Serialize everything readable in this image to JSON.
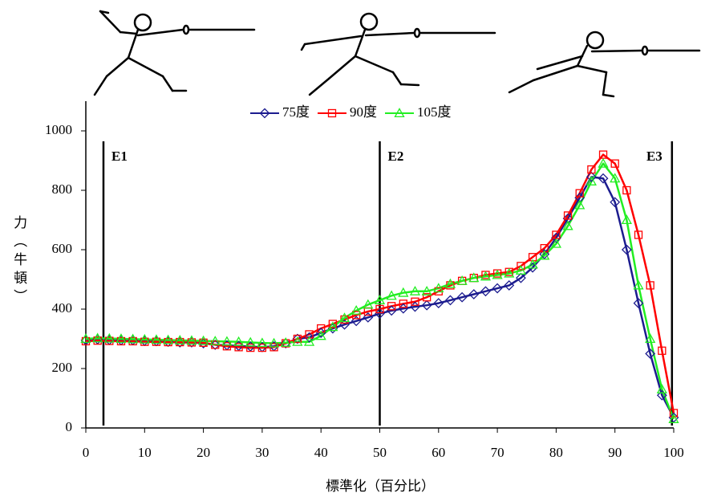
{
  "chart_data": {
    "type": "line",
    "xlabel": "標準化（百分比）",
    "ylabel": "力（牛頓）",
    "x": [
      0,
      2,
      4,
      6,
      8,
      10,
      12,
      14,
      16,
      18,
      20,
      22,
      24,
      26,
      28,
      30,
      32,
      34,
      36,
      38,
      40,
      42,
      44,
      46,
      48,
      50,
      52,
      54,
      56,
      58,
      60,
      62,
      64,
      66,
      68,
      70,
      72,
      74,
      76,
      78,
      80,
      82,
      84,
      86,
      88,
      90,
      92,
      94,
      96,
      98,
      100
    ],
    "series": [
      {
        "name": "75度",
        "color": "#1c1c8f",
        "marker": "diamond",
        "values": [
          295,
          298,
          296,
          295,
          295,
          293,
          292,
          290,
          288,
          288,
          285,
          280,
          278,
          276,
          274,
          272,
          275,
          285,
          300,
          305,
          320,
          335,
          348,
          360,
          372,
          385,
          395,
          402,
          408,
          413,
          420,
          430,
          440,
          450,
          460,
          470,
          480,
          505,
          540,
          585,
          640,
          705,
          775,
          845,
          840,
          760,
          600,
          420,
          250,
          110,
          35
        ]
      },
      {
        "name": "90度",
        "color": "#ff0000",
        "marker": "square",
        "values": [
          292,
          294,
          293,
          292,
          292,
          290,
          290,
          289,
          289,
          288,
          287,
          280,
          275,
          272,
          270,
          270,
          272,
          285,
          300,
          315,
          335,
          350,
          365,
          380,
          392,
          400,
          410,
          418,
          425,
          440,
          460,
          480,
          495,
          505,
          515,
          520,
          525,
          545,
          575,
          605,
          650,
          715,
          790,
          870,
          920,
          890,
          800,
          650,
          480,
          260,
          50
        ]
      },
      {
        "name": "105度",
        "color": "#22ee22",
        "marker": "triangle",
        "values": [
          300,
          302,
          301,
          300,
          299,
          298,
          297,
          296,
          295,
          294,
          293,
          292,
          291,
          290,
          288,
          286,
          285,
          287,
          290,
          290,
          310,
          340,
          370,
          395,
          415,
          430,
          445,
          455,
          460,
          460,
          470,
          485,
          495,
          505,
          510,
          515,
          520,
          530,
          550,
          580,
          620,
          680,
          750,
          830,
          890,
          840,
          700,
          480,
          300,
          130,
          30
        ]
      }
    ],
    "annotations": [
      {
        "label": "E1",
        "x": 3
      },
      {
        "label": "E2",
        "x": 50
      },
      {
        "label": "E3",
        "x": 99.7
      }
    ],
    "xlim": [
      0,
      100
    ],
    "xticks": [
      0,
      10,
      20,
      30,
      40,
      50,
      60,
      70,
      80,
      90,
      100
    ],
    "ylim": [
      0,
      1100
    ],
    "yticks": [
      0,
      200,
      400,
      600,
      800,
      1000
    ],
    "legend": "top"
  }
}
